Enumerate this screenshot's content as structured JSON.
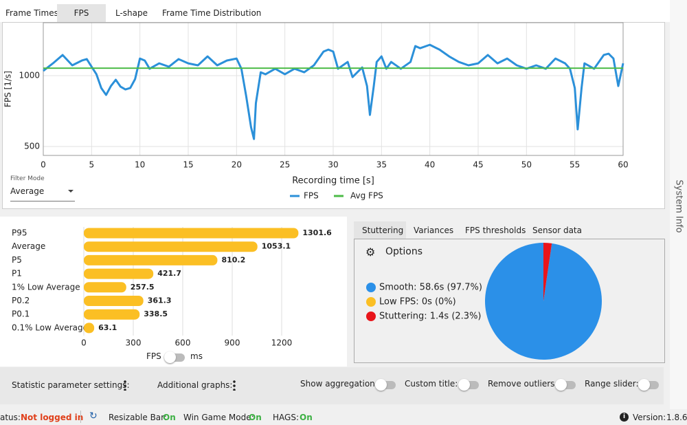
{
  "tabs": [
    "Frame Times",
    "FPS",
    "L-shape",
    "Frame Time Distribution"
  ],
  "fps_chart": {
    "type": "line",
    "ylabel": "FPS [1/s]",
    "xlabel": "Recording time [s]",
    "xlim": [
      0,
      60
    ],
    "xticks": [
      0,
      5,
      10,
      15,
      20,
      25,
      30,
      35,
      40,
      45,
      50,
      55,
      60
    ],
    "ylim": [
      437,
      1374
    ],
    "yticks": [
      500,
      1000
    ],
    "grid": true,
    "series": [
      {
        "name": "FPS",
        "color": "#2b90d9",
        "x": [
          0,
          1,
          2,
          3,
          4,
          4.5,
          5,
          5.5,
          6,
          6.5,
          7,
          7.5,
          8,
          8.5,
          9,
          9.5,
          10,
          10.5,
          11,
          12,
          13,
          14,
          15,
          16,
          17,
          18,
          19,
          20,
          20.5,
          21,
          21.5,
          21.8,
          22,
          22.5,
          23,
          24,
          25,
          26,
          27,
          28,
          29,
          29.5,
          30,
          30.5,
          31,
          31.5,
          32,
          33,
          33.5,
          33.8,
          34.2,
          34.5,
          35,
          35.5,
          36,
          37,
          38,
          38.5,
          39,
          40,
          41,
          42,
          43,
          44,
          45,
          46,
          47,
          48,
          49,
          50,
          51,
          52,
          53,
          54,
          54.5,
          55,
          55.3,
          55.7,
          56,
          57,
          58,
          58.5,
          59,
          59.5,
          60
        ],
        "values": [
          1034,
          1087,
          1146,
          1073,
          1107,
          1117,
          1063,
          1010,
          913,
          864,
          927,
          971,
          922,
          903,
          913,
          976,
          1121,
          1107,
          1049,
          1087,
          1063,
          1117,
          1087,
          1073,
          1136,
          1073,
          1107,
          1121,
          1049,
          854,
          636,
          553,
          806,
          1024,
          1010,
          1049,
          1010,
          1049,
          1024,
          1073,
          1170,
          1184,
          1170,
          1049,
          1073,
          1097,
          990,
          1058,
          927,
          723,
          927,
          1097,
          1136,
          1049,
          1097,
          1049,
          1097,
          1209,
          1194,
          1218,
          1184,
          1136,
          1097,
          1073,
          1087,
          1146,
          1087,
          1121,
          1073,
          1049,
          1073,
          1049,
          1121,
          1087,
          1049,
          913,
          621,
          913,
          1087,
          1049,
          1146,
          1155,
          1121,
          927,
          1087
        ]
      },
      {
        "name": "Avg FPS",
        "color": "#4cbb47",
        "x": [
          0,
          60
        ],
        "values": [
          1053,
          1053
        ]
      }
    ]
  },
  "filter": {
    "label": "Filter Mode",
    "value": "Average"
  },
  "stats_chart": {
    "type": "bar",
    "orientation": "horizontal",
    "color": "#fbbf24",
    "categories": [
      "P95",
      "Average",
      "P5",
      "P1",
      "1% Low Average",
      "P0.2",
      "P0.1",
      "0.1% Low Average"
    ],
    "values": [
      1301.6,
      1053.1,
      810.2,
      421.7,
      257.5,
      361.3,
      338.5,
      63.1
    ],
    "xlim": [
      0,
      1500
    ],
    "xticks": [
      0,
      300,
      600,
      900,
      1200
    ],
    "grid": true
  },
  "unit_toggle": [
    "FPS",
    "ms"
  ],
  "side_tabs": [
    "Stuttering",
    "Variances",
    "FPS thresholds",
    "Sensor data"
  ],
  "options_label": "Options",
  "stutter_chart": {
    "type": "pie",
    "categories": [
      "Smooth",
      "Low FPS",
      "Stuttering"
    ],
    "values": [
      97.7,
      0,
      2.3
    ],
    "value_labels": [
      "Smooth: 58.6s (97.7%)",
      "Low FPS: 0s (0%)",
      "Stuttering: 1.4s (2.3%)"
    ],
    "colors": [
      "#2b90e8",
      "#fbbf24",
      "#e8151b"
    ]
  },
  "settings": [
    "Statistic parameter settings:",
    "Additional graphs:",
    "Show aggregation:",
    "Custom title:",
    "Remove outliers:",
    "Range slider:"
  ],
  "status": {
    "prefix": "atus:",
    "login": "Not logged in",
    "items": [
      {
        "label": "Resizable Bar:",
        "value": "On"
      },
      {
        "label": "Win Game Mode:",
        "value": "On"
      },
      {
        "label": "HAGS:",
        "value": "On"
      }
    ],
    "version_label": "Version:",
    "version": "1.8.6"
  },
  "side_panel": "System Info"
}
